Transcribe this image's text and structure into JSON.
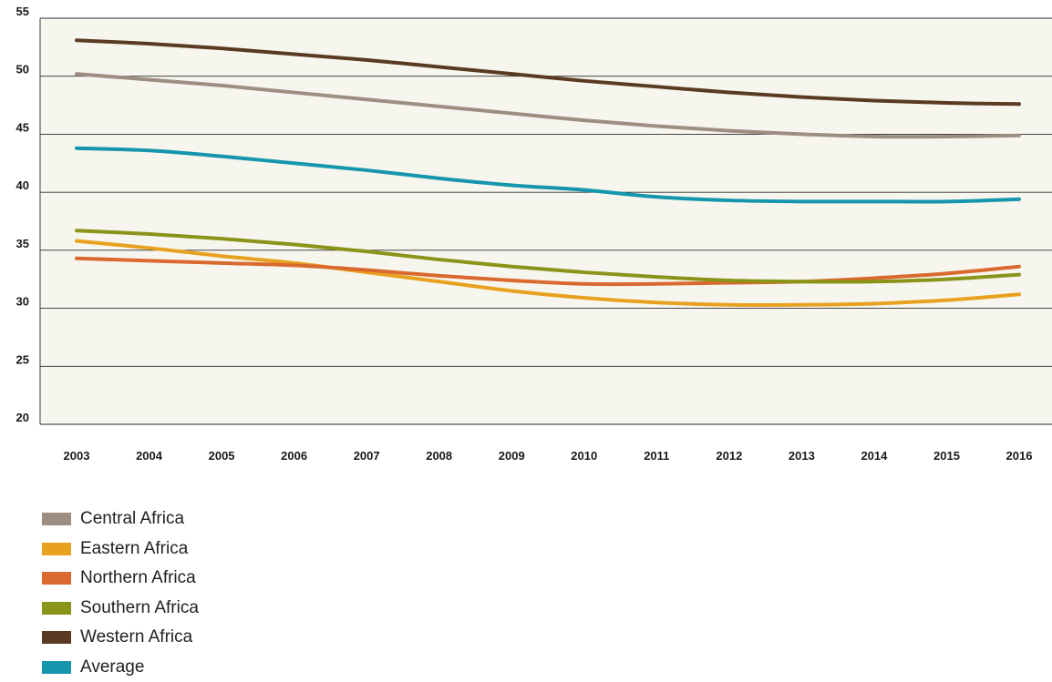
{
  "chart_data": {
    "type": "line",
    "title": "",
    "xlabel": "",
    "ylabel": "",
    "categories": [
      "2003",
      "2004",
      "2005",
      "2006",
      "2007",
      "2008",
      "2009",
      "2010",
      "2011",
      "2012",
      "2013",
      "2014",
      "2015",
      "2016"
    ],
    "ylim": [
      20,
      55
    ],
    "yticks": [
      "20",
      "25",
      "30",
      "35",
      "40",
      "45",
      "50",
      "55"
    ],
    "grid": true,
    "legend_position": "bottom-left",
    "plot_background": "#f7f6ee",
    "series": [
      {
        "name": "Central Africa",
        "color": "#9e8e82",
        "values": [
          50.2,
          49.7,
          49.2,
          48.6,
          48.0,
          47.4,
          46.8,
          46.2,
          45.7,
          45.3,
          45.0,
          44.8,
          44.8,
          44.9
        ]
      },
      {
        "name": "Eastern Africa",
        "color": "#e8a11f",
        "values": [
          35.8,
          35.2,
          34.5,
          33.9,
          33.1,
          32.3,
          31.5,
          30.9,
          30.5,
          30.3,
          30.3,
          30.4,
          30.7,
          31.2
        ]
      },
      {
        "name": "Northern Africa",
        "color": "#d9692e",
        "values": [
          34.3,
          34.1,
          33.9,
          33.7,
          33.3,
          32.8,
          32.4,
          32.1,
          32.1,
          32.2,
          32.3,
          32.6,
          33.0,
          33.6
        ]
      },
      {
        "name": "Southern Africa",
        "color": "#8a9419",
        "values": [
          36.7,
          36.4,
          36.0,
          35.5,
          34.9,
          34.2,
          33.6,
          33.1,
          32.7,
          32.4,
          32.3,
          32.3,
          32.5,
          32.9
        ]
      },
      {
        "name": "Western Africa",
        "color": "#5a3a22",
        "values": [
          53.1,
          52.8,
          52.4,
          51.9,
          51.4,
          50.8,
          50.2,
          49.6,
          49.1,
          48.6,
          48.2,
          47.9,
          47.7,
          47.6
        ]
      },
      {
        "name": "Average",
        "color": "#1596ad",
        "values": [
          43.8,
          43.6,
          43.1,
          42.5,
          41.9,
          41.2,
          40.6,
          40.2,
          39.6,
          39.3,
          39.2,
          39.2,
          39.2,
          39.4
        ]
      }
    ]
  }
}
